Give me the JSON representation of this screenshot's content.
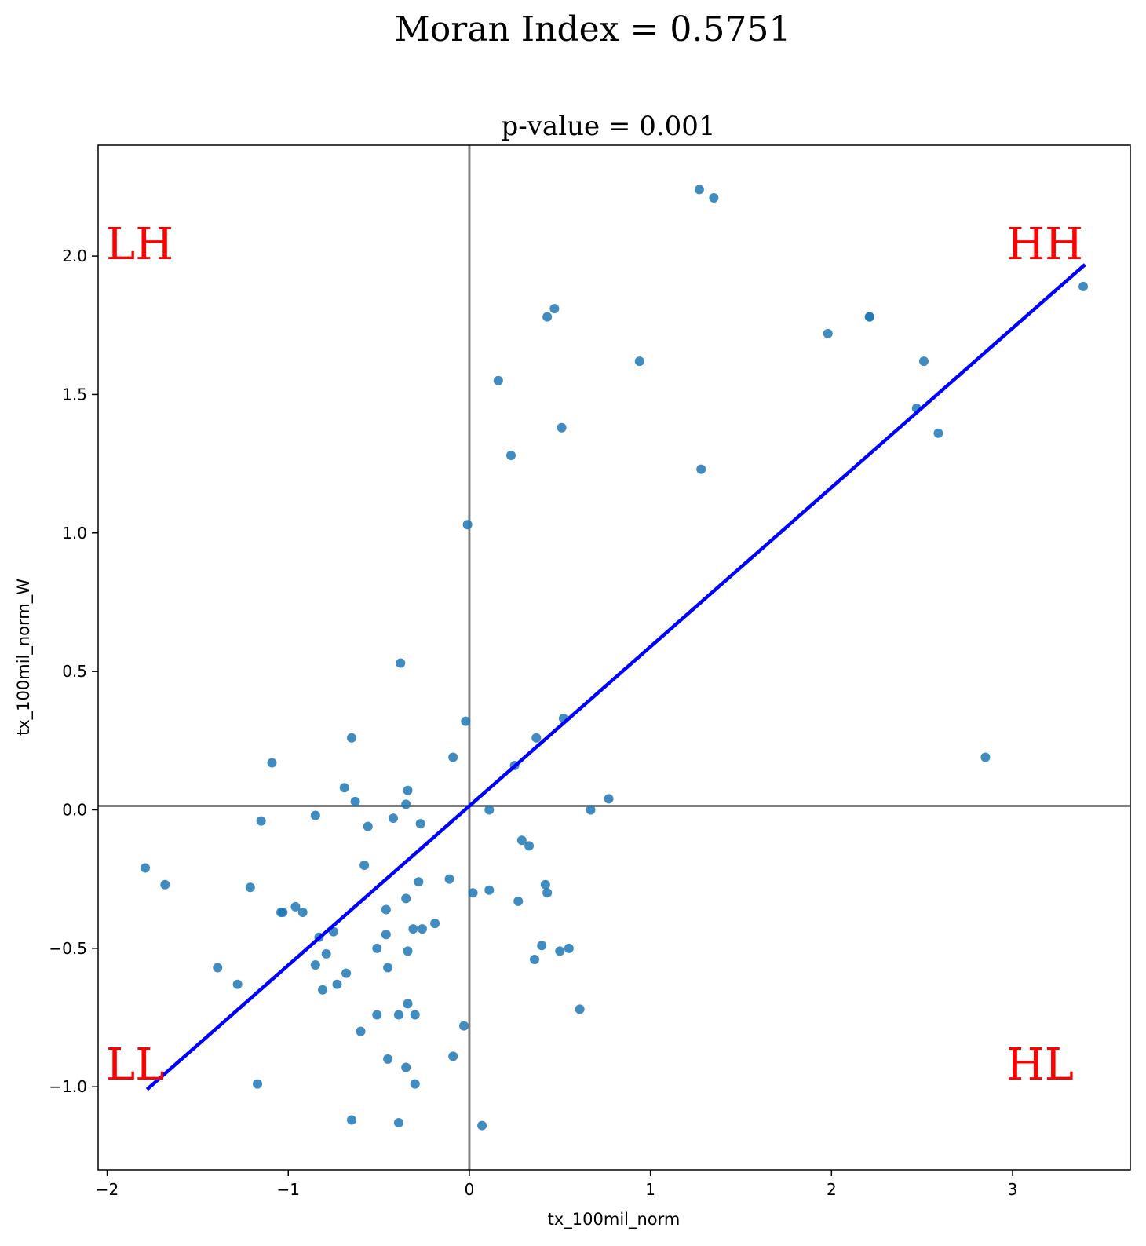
{
  "figure": {
    "suptitle": "Moran Index = 0.5751"
  },
  "chart_data": {
    "type": "scatter",
    "title": "p-value = 0.001",
    "xlabel": "tx_100mil_norm",
    "ylabel": "tx_100mil_norm_W",
    "xlim": [
      -2.05,
      3.65
    ],
    "ylim": [
      -1.3,
      2.4
    ],
    "x_ticks": [
      -2,
      -1,
      0,
      1,
      2,
      3
    ],
    "x_tick_labels": [
      "−2",
      "−1",
      "0",
      "1",
      "2",
      "3"
    ],
    "y_ticks": [
      -1.0,
      -0.5,
      0.0,
      0.5,
      1.0,
      1.5,
      2.0
    ],
    "y_tick_labels": [
      "−1.0",
      "−0.5",
      "0.0",
      "0.5",
      "1.0",
      "1.5",
      "2.0"
    ],
    "grid": false,
    "reference_lines": {
      "vertical_x": 0.0,
      "horizontal_y": 0.014,
      "color": "#808080"
    },
    "quadrant_labels": [
      {
        "text": "LH",
        "position": "top-left"
      },
      {
        "text": "HH",
        "position": "top-right"
      },
      {
        "text": "LL",
        "position": "bottom-left"
      },
      {
        "text": "HL",
        "position": "bottom-right"
      }
    ],
    "quadrant_label_color": "#ff0000",
    "point_color": "#1f77b4",
    "fit_line": {
      "color": "#0000ff",
      "slope": 0.5751,
      "intercept": 0.014,
      "x_start": -1.78,
      "x_end": 3.4
    },
    "series": [
      {
        "points": [
          [
            1.27,
            2.24
          ],
          [
            1.35,
            2.21
          ],
          [
            3.39,
            1.89
          ],
          [
            0.47,
            1.81
          ],
          [
            0.43,
            1.78
          ],
          [
            2.21,
            1.78
          ],
          [
            2.21,
            1.78
          ],
          [
            1.98,
            1.72
          ],
          [
            0.94,
            1.62
          ],
          [
            2.51,
            1.62
          ],
          [
            0.16,
            1.55
          ],
          [
            2.47,
            1.45
          ],
          [
            0.51,
            1.38
          ],
          [
            2.59,
            1.36
          ],
          [
            0.23,
            1.28
          ],
          [
            1.28,
            1.23
          ],
          [
            -0.01,
            1.03
          ],
          [
            -0.38,
            0.53
          ],
          [
            0.52,
            0.33
          ],
          [
            -0.02,
            0.32
          ],
          [
            -0.65,
            0.26
          ],
          [
            0.37,
            0.26
          ],
          [
            -0.09,
            0.19
          ],
          [
            2.85,
            0.19
          ],
          [
            -1.09,
            0.17
          ],
          [
            0.25,
            0.16
          ],
          [
            -0.69,
            0.08
          ],
          [
            -0.34,
            0.07
          ],
          [
            0.77,
            0.04
          ],
          [
            -0.63,
            0.03
          ],
          [
            -0.35,
            0.02
          ],
          [
            0.67,
            0.0
          ],
          [
            0.11,
            0.0
          ],
          [
            -0.85,
            -0.02
          ],
          [
            -0.42,
            -0.03
          ],
          [
            -1.15,
            -0.04
          ],
          [
            -0.27,
            -0.05
          ],
          [
            -0.56,
            -0.06
          ],
          [
            0.29,
            -0.11
          ],
          [
            0.33,
            -0.13
          ],
          [
            -0.58,
            -0.2
          ],
          [
            -1.79,
            -0.21
          ],
          [
            -0.11,
            -0.25
          ],
          [
            -0.28,
            -0.26
          ],
          [
            -1.68,
            -0.27
          ],
          [
            0.42,
            -0.27
          ],
          [
            -1.21,
            -0.28
          ],
          [
            0.11,
            -0.29
          ],
          [
            0.02,
            -0.3
          ],
          [
            0.43,
            -0.3
          ],
          [
            -0.35,
            -0.32
          ],
          [
            0.27,
            -0.33
          ],
          [
            -0.96,
            -0.35
          ],
          [
            -0.46,
            -0.36
          ],
          [
            -1.04,
            -0.37
          ],
          [
            -1.03,
            -0.37
          ],
          [
            -0.92,
            -0.37
          ],
          [
            -0.19,
            -0.41
          ],
          [
            -0.26,
            -0.43
          ],
          [
            -0.31,
            -0.43
          ],
          [
            -0.75,
            -0.44
          ],
          [
            -0.46,
            -0.45
          ],
          [
            -0.83,
            -0.46
          ],
          [
            0.4,
            -0.49
          ],
          [
            -0.51,
            -0.5
          ],
          [
            0.55,
            -0.5
          ],
          [
            -0.34,
            -0.51
          ],
          [
            0.5,
            -0.51
          ],
          [
            -0.79,
            -0.52
          ],
          [
            0.36,
            -0.54
          ],
          [
            -0.85,
            -0.56
          ],
          [
            -0.45,
            -0.57
          ],
          [
            -1.39,
            -0.57
          ],
          [
            -0.68,
            -0.59
          ],
          [
            -1.28,
            -0.63
          ],
          [
            -0.73,
            -0.63
          ],
          [
            -0.81,
            -0.65
          ],
          [
            -0.34,
            -0.7
          ],
          [
            0.61,
            -0.72
          ],
          [
            -0.51,
            -0.74
          ],
          [
            -0.3,
            -0.74
          ],
          [
            -0.39,
            -0.74
          ],
          [
            -0.03,
            -0.78
          ],
          [
            -0.6,
            -0.8
          ],
          [
            -0.09,
            -0.89
          ],
          [
            -0.45,
            -0.9
          ],
          [
            -0.35,
            -0.93
          ],
          [
            -1.17,
            -0.99
          ],
          [
            -0.3,
            -0.99
          ],
          [
            -0.65,
            -1.12
          ],
          [
            -0.39,
            -1.13
          ],
          [
            0.07,
            -1.14
          ]
        ]
      }
    ]
  }
}
